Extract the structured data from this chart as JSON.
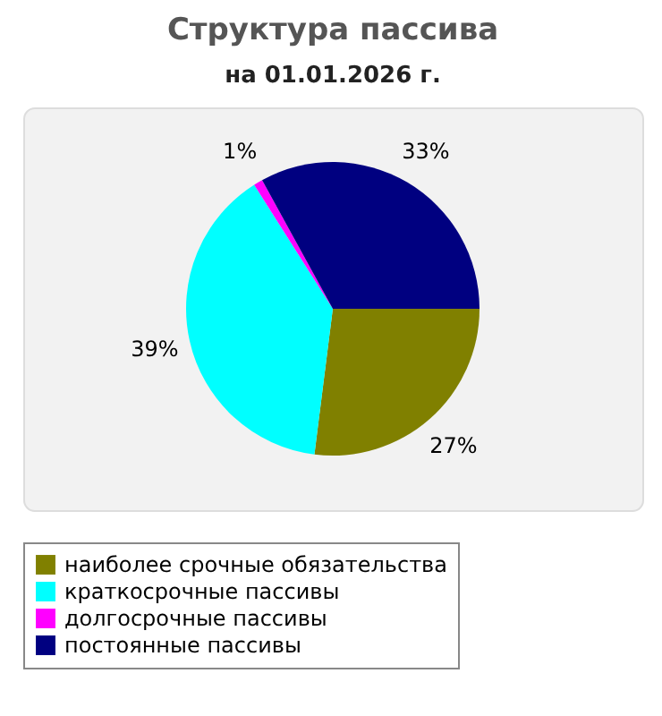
{
  "chart_data": {
    "type": "pie",
    "title": "Структура пассива",
    "subtitle": "на 01.01.2026 г.",
    "categories": [
      "наиболее срочные обязательства",
      "краткосрочные пассивы",
      "долгосрочные пассивы",
      "постоянные пассивы"
    ],
    "values": [
      27,
      39,
      1,
      33
    ],
    "colors": [
      "#808000",
      "#00ffff",
      "#ff00ff",
      "#000080"
    ],
    "value_labels": [
      "27%",
      "39%",
      "1%",
      "33%"
    ],
    "legend": "bottom"
  }
}
